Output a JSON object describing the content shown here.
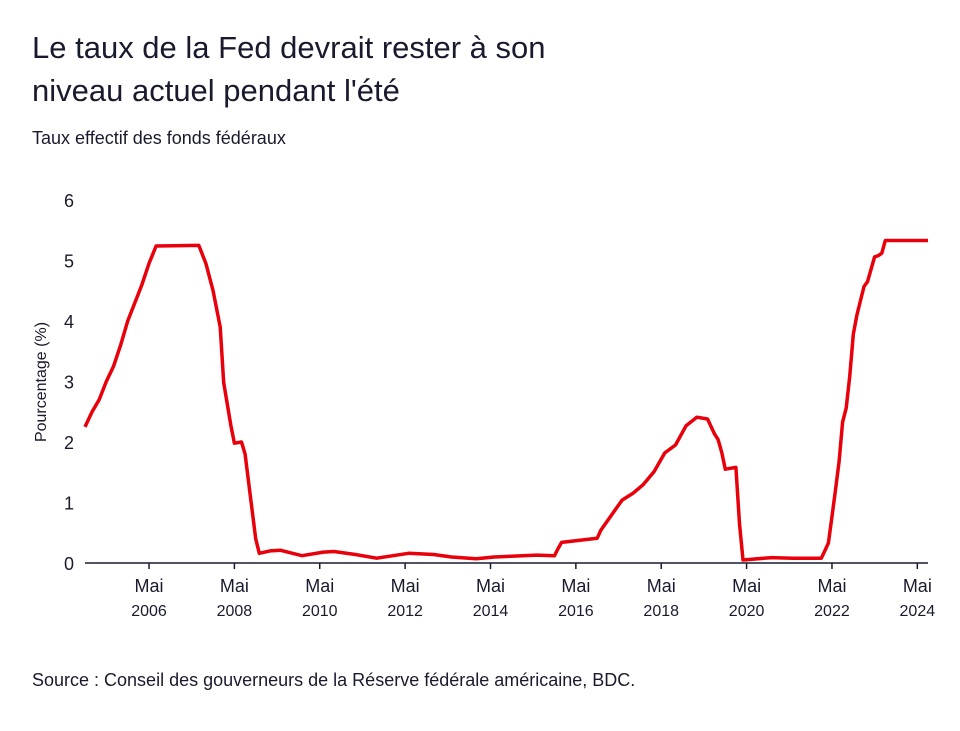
{
  "chart_data": {
    "type": "line",
    "title": [
      "Le taux de la Fed devrait rester à son",
      "niveau actuel pendant l'été"
    ],
    "subtitle": "Taux effectif des fonds fédéraux",
    "y_label": "Pourcentage (%)",
    "source": "Source : Conseil des gouverneurs de la Réserve fédérale américaine, BDC.",
    "x": [
      "2004-11",
      "2005-01",
      "2005-03",
      "2005-05",
      "2005-07",
      "2005-09",
      "2005-11",
      "2006-01",
      "2006-03",
      "2006-05",
      "2006-07",
      "2007-07",
      "2007-09",
      "2007-11",
      "2008-01",
      "2008-02",
      "2008-04",
      "2008-05",
      "2008-07",
      "2008-08",
      "2008-11",
      "2008-12",
      "2009-03",
      "2009-06",
      "2009-12",
      "2010-06",
      "2010-09",
      "2011-03",
      "2011-09",
      "2012-06",
      "2013-01",
      "2013-06",
      "2014-01",
      "2014-06",
      "2015-06",
      "2015-11",
      "2015-12",
      "2016-01",
      "2016-11",
      "2016-12",
      "2017-03",
      "2017-06",
      "2017-09",
      "2017-12",
      "2018-03",
      "2018-06",
      "2018-09",
      "2018-12",
      "2019-03",
      "2019-06",
      "2019-08",
      "2019-09",
      "2019-10",
      "2019-11",
      "2020-02",
      "2020-03",
      "2020-04",
      "2020-12",
      "2021-06",
      "2021-12",
      "2022-02",
      "2022-03",
      "2022-04",
      "2022-05",
      "2022-06",
      "2022-07",
      "2022-08",
      "2022-09",
      "2022-10",
      "2022-11",
      "2022-12",
      "2023-02",
      "2023-03",
      "2023-05",
      "2023-06",
      "2023-07",
      "2023-08",
      "2024-08"
    ],
    "series": [
      {
        "name": "Taux effectif des fonds fédéraux",
        "color": "#e8000b",
        "values": [
          2.25,
          2.5,
          2.7,
          3.0,
          3.25,
          3.6,
          4.0,
          4.3,
          4.6,
          4.95,
          5.24,
          5.25,
          4.95,
          4.5,
          3.9,
          2.98,
          2.28,
          1.98,
          2.0,
          1.8,
          0.4,
          0.16,
          0.2,
          0.21,
          0.12,
          0.18,
          0.19,
          0.14,
          0.08,
          0.16,
          0.14,
          0.1,
          0.07,
          0.1,
          0.13,
          0.12,
          0.24,
          0.34,
          0.41,
          0.54,
          0.79,
          1.04,
          1.15,
          1.3,
          1.51,
          1.82,
          1.95,
          2.27,
          2.41,
          2.38,
          2.13,
          2.04,
          1.83,
          1.55,
          1.58,
          0.65,
          0.05,
          0.09,
          0.08,
          0.08,
          0.08,
          0.2,
          0.33,
          0.77,
          1.21,
          1.68,
          2.33,
          2.56,
          3.08,
          3.78,
          4.1,
          4.57,
          4.65,
          5.06,
          5.08,
          5.12,
          5.33,
          5.33
        ]
      }
    ],
    "xlim": [
      "2004-11",
      "2024-08"
    ],
    "xticks": [
      {
        "value": "2006-05",
        "label": [
          "Mai",
          "2006"
        ]
      },
      {
        "value": "2008-05",
        "label": [
          "Mai",
          "2008"
        ]
      },
      {
        "value": "2010-05",
        "label": [
          "Mai",
          "2010"
        ]
      },
      {
        "value": "2012-05",
        "label": [
          "Mai",
          "2012"
        ]
      },
      {
        "value": "2014-05",
        "label": [
          "Mai",
          "2014"
        ]
      },
      {
        "value": "2016-05",
        "label": [
          "Mai",
          "2016"
        ]
      },
      {
        "value": "2018-05",
        "label": [
          "Mai",
          "2018"
        ]
      },
      {
        "value": "2020-05",
        "label": [
          "Mai",
          "2020"
        ]
      },
      {
        "value": "2022-05",
        "label": [
          "Mai",
          "2022"
        ]
      },
      {
        "value": "2024-05",
        "label": [
          "Mai",
          "2024"
        ]
      }
    ],
    "ylim": [
      0,
      6
    ],
    "yticks": [
      0,
      1,
      2,
      3,
      4,
      5,
      6
    ]
  }
}
